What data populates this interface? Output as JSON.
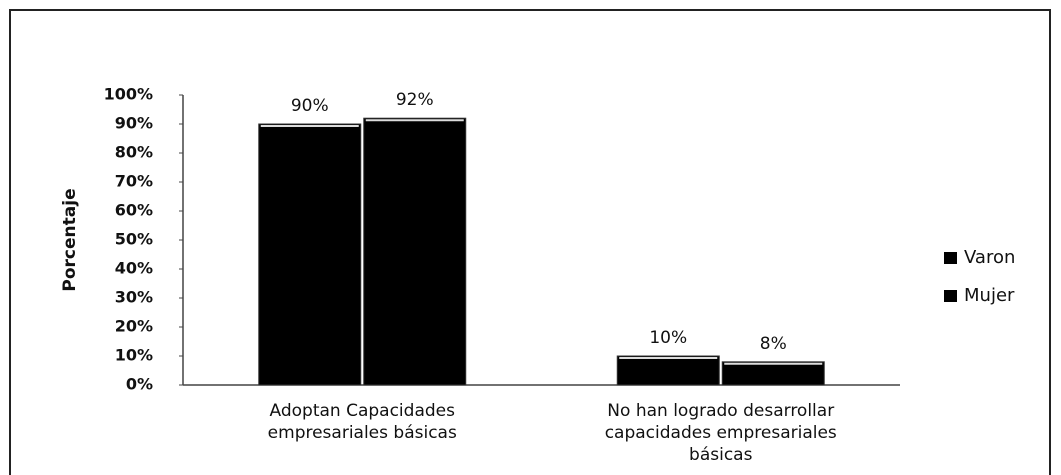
{
  "chart_data": {
    "type": "bar",
    "y_label": "Porcentaje",
    "categories": [
      "Adoptan Capacidades empresariales básicas",
      "No han logrado desarrollar capacidades empresariales básicas"
    ],
    "series": [
      {
        "name": "Varon",
        "color": "#000000",
        "values": [
          90,
          10
        ],
        "value_labels": [
          "90%",
          "10%"
        ]
      },
      {
        "name": "Mujer",
        "color": "#000000",
        "values": [
          92,
          8
        ],
        "value_labels": [
          "92%",
          "8%"
        ]
      }
    ],
    "ylim": [
      0,
      100
    ],
    "yticks": [
      {
        "value": 0,
        "label": "0%"
      },
      {
        "value": 10,
        "label": "10%"
      },
      {
        "value": 20,
        "label": "20%"
      },
      {
        "value": 30,
        "label": "30%"
      },
      {
        "value": 40,
        "label": "40%"
      },
      {
        "value": 50,
        "label": "50%"
      },
      {
        "value": 60,
        "label": "60%"
      },
      {
        "value": 70,
        "label": "70%"
      },
      {
        "value": 80,
        "label": "80%"
      },
      {
        "value": 90,
        "label": "90%"
      },
      {
        "value": 100,
        "label": "100%"
      }
    ],
    "legend": "right"
  }
}
